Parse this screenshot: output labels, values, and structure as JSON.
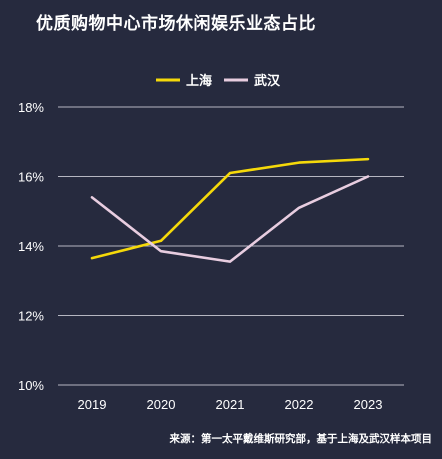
{
  "title": "优质购物中心市场休闲娱乐业态占比",
  "source": "来源：第一太平戴维斯研究部，基于上海及武汉样本项目",
  "chart_data": {
    "type": "line",
    "title": "优质购物中心市场休闲娱乐业态占比",
    "x": [
      "2019",
      "2020",
      "2021",
      "2022",
      "2023"
    ],
    "series": [
      {
        "name": "上海",
        "color": "#f5d90a",
        "values": [
          13.65,
          14.15,
          16.1,
          16.4,
          16.5
        ]
      },
      {
        "name": "武汉",
        "color": "#e8cde0",
        "values": [
          15.4,
          13.85,
          13.55,
          15.1,
          16.0
        ]
      }
    ],
    "ylim": [
      10,
      18
    ],
    "yticks": [
      10,
      12,
      14,
      16,
      18
    ],
    "ytick_labels": [
      "10%",
      "12%",
      "14%",
      "16%",
      "18%"
    ],
    "grid": true,
    "legend_position": "top-center",
    "xlabel": "",
    "ylabel": ""
  }
}
